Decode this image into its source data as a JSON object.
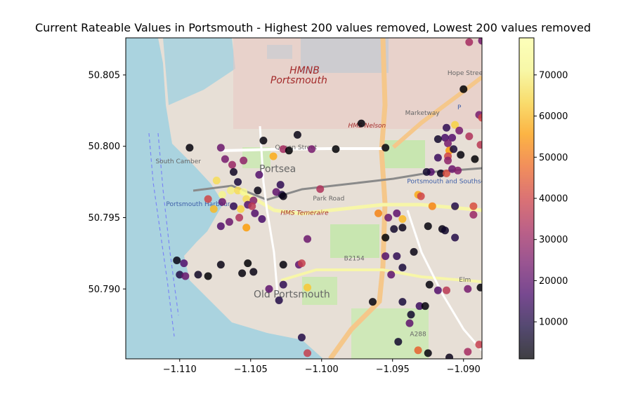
{
  "chart_data": {
    "type": "scatter",
    "title": "Current Rateable Values in Portsmouth - Highest 200 values removed, Lowest  200 values removed",
    "xlabel": "",
    "ylabel": "",
    "xlim": [
      -1.1138,
      -1.0887
    ],
    "ylim": [
      50.7851,
      50.8076
    ],
    "xticks": [
      -1.11,
      -1.105,
      -1.1,
      -1.095,
      -1.09
    ],
    "xtick_labels": [
      "−1.110",
      "−1.105",
      "−1.100",
      "−1.095",
      "−1.090"
    ],
    "yticks": [
      50.79,
      50.795,
      50.8,
      50.805
    ],
    "ytick_labels": [
      "50.790",
      "50.795",
      "50.800",
      "50.805"
    ],
    "grid": false,
    "colormap": "inferno",
    "colorbar": {
      "min": 1000,
      "max": 79000,
      "ticks": [
        10000,
        20000,
        30000,
        40000,
        50000,
        60000,
        70000
      ],
      "tick_labels": [
        "10000",
        "20000",
        "30000",
        "40000",
        "50000",
        "60000",
        "70000"
      ]
    },
    "basemap_labels": [
      {
        "text": "HMNB",
        "lon": -1.1012,
        "lat": 50.8051
      },
      {
        "text": "Portsmouth",
        "lon": -1.1016,
        "lat": 50.8044
      },
      {
        "text": "HMS Nelson",
        "lon": -1.0968,
        "lat": 50.8013
      },
      {
        "text": "Portsea",
        "lon": -1.1031,
        "lat": 50.7982
      },
      {
        "text": "Queen Street",
        "lon": -1.1018,
        "lat": 50.7998
      },
      {
        "text": "Park Road",
        "lon": -1.0995,
        "lat": 50.7962
      },
      {
        "text": "HMS Temeraire",
        "lon": -1.1012,
        "lat": 50.7952
      },
      {
        "text": "B2154",
        "lon": -1.0977,
        "lat": 50.792
      },
      {
        "text": "Old Portsmouth",
        "lon": -1.1021,
        "lat": 50.7894
      },
      {
        "text": "A288",
        "lon": -1.0932,
        "lat": 50.7867
      },
      {
        "text": "Portsmouth Harbour",
        "lon": -1.1087,
        "lat": 50.7958
      },
      {
        "text": "Portsmouth and Southsea",
        "lon": -1.0911,
        "lat": 50.7974
      },
      {
        "text": "Hope Street",
        "lon": -1.0898,
        "lat": 50.805
      },
      {
        "text": "Marketway",
        "lon": -1.0929,
        "lat": 50.8022
      },
      {
        "text": "South Camber",
        "lon": -1.1101,
        "lat": 50.7988
      },
      {
        "text": "Elm",
        "lon": -1.0899,
        "lat": 50.7905
      },
      {
        "text": "P",
        "lon": -1.0903,
        "lat": 50.8026
      }
    ],
    "points": [
      {
        "x": -1.1093,
        "y": 50.7999,
        "v": 2000
      },
      {
        "x": -1.1071,
        "y": 50.7999,
        "v": 22000
      },
      {
        "x": -1.1068,
        "y": 50.7991,
        "v": 24000
      },
      {
        "x": -1.1055,
        "y": 50.799,
        "v": 28000
      },
      {
        "x": -1.1063,
        "y": 50.7987,
        "v": 30000
      },
      {
        "x": -1.1062,
        "y": 50.7982,
        "v": 5000
      },
      {
        "x": -1.1044,
        "y": 50.798,
        "v": 18000
      },
      {
        "x": -1.1059,
        "y": 50.7975,
        "v": 8000
      },
      {
        "x": -1.1074,
        "y": 50.7976,
        "v": 66000
      },
      {
        "x": -1.107,
        "y": 50.7966,
        "v": 72000
      },
      {
        "x": -1.1064,
        "y": 50.7969,
        "v": 70000
      },
      {
        "x": -1.1059,
        "y": 50.7969,
        "v": 66000
      },
      {
        "x": -1.1055,
        "y": 50.7968,
        "v": 74000
      },
      {
        "x": -1.1045,
        "y": 50.7969,
        "v": 3000
      },
      {
        "x": -1.108,
        "y": 50.7963,
        "v": 40000
      },
      {
        "x": -1.107,
        "y": 50.7961,
        "v": 22000
      },
      {
        "x": -1.1053,
        "y": 50.7963,
        "v": 66000
      },
      {
        "x": -1.1052,
        "y": 50.7959,
        "v": 18000
      },
      {
        "x": -1.1048,
        "y": 50.7962,
        "v": 26000
      },
      {
        "x": -1.1049,
        "y": 50.7958,
        "v": 36000
      },
      {
        "x": -1.1062,
        "y": 50.7958,
        "v": 12000
      },
      {
        "x": -1.1076,
        "y": 50.7956,
        "v": 60000
      },
      {
        "x": -1.1057,
        "y": 50.7956,
        "v": 64000
      },
      {
        "x": -1.1047,
        "y": 50.7953,
        "v": 18000
      },
      {
        "x": -1.1058,
        "y": 50.795,
        "v": 34000
      },
      {
        "x": -1.1065,
        "y": 50.7947,
        "v": 22000
      },
      {
        "x": -1.1053,
        "y": 50.7943,
        "v": 56000
      },
      {
        "x": -1.1071,
        "y": 50.7944,
        "v": 18000
      },
      {
        "x": -1.1042,
        "y": 50.7949,
        "v": 16000
      },
      {
        "x": -1.1041,
        "y": 50.8004,
        "v": 2000
      },
      {
        "x": -1.1034,
        "y": 50.7993,
        "v": 58000
      },
      {
        "x": -1.1027,
        "y": 50.7998,
        "v": 32000
      },
      {
        "x": -1.1023,
        "y": 50.7997,
        "v": 1000
      },
      {
        "x": -1.1017,
        "y": 50.8008,
        "v": 3000
      },
      {
        "x": -1.1007,
        "y": 50.7998,
        "v": 24000
      },
      {
        "x": -1.099,
        "y": 50.7998,
        "v": 1000
      },
      {
        "x": -1.1029,
        "y": 50.7973,
        "v": 12000
      },
      {
        "x": -1.1028,
        "y": 50.7966,
        "v": 8000
      },
      {
        "x": -1.1027,
        "y": 50.7965,
        "v": 3000
      },
      {
        "x": -1.1032,
        "y": 50.7968,
        "v": 20000
      },
      {
        "x": -1.1001,
        "y": 50.797,
        "v": 34000
      },
      {
        "x": -1.0972,
        "y": 50.8016,
        "v": 2000
      },
      {
        "x": -1.0955,
        "y": 50.7999,
        "v": 2000
      },
      {
        "x": -1.096,
        "y": 50.7953,
        "v": 52000
      },
      {
        "x": -1.0953,
        "y": 50.795,
        "v": 22000
      },
      {
        "x": -1.0949,
        "y": 50.7942,
        "v": 6000
      },
      {
        "x": -1.0955,
        "y": 50.7936,
        "v": 1000
      },
      {
        "x": -1.0943,
        "y": 50.7943,
        "v": 4000
      },
      {
        "x": -1.0947,
        "y": 50.7953,
        "v": 20000
      },
      {
        "x": -1.0943,
        "y": 50.7949,
        "v": 60000
      },
      {
        "x": -1.101,
        "y": 50.7935,
        "v": 22000
      },
      {
        "x": -1.0955,
        "y": 50.7923,
        "v": 18000
      },
      {
        "x": -1.0947,
        "y": 50.7923,
        "v": 12000
      },
      {
        "x": -1.0943,
        "y": 50.7915,
        "v": 8000
      },
      {
        "x": -1.0951,
        "y": 50.791,
        "v": 20000
      },
      {
        "x": -1.0935,
        "y": 50.7926,
        "v": 3000
      },
      {
        "x": -1.0925,
        "y": 50.7944,
        "v": 2000
      },
      {
        "x": -1.0915,
        "y": 50.7942,
        "v": 3000
      },
      {
        "x": -1.0913,
        "y": 50.7941,
        "v": 6000
      },
      {
        "x": -1.0906,
        "y": 50.7936,
        "v": 10000
      },
      {
        "x": -1.0924,
        "y": 50.7903,
        "v": 2000
      },
      {
        "x": -1.0918,
        "y": 50.7899,
        "v": 18000
      },
      {
        "x": -1.0912,
        "y": 50.7899,
        "v": 36000
      },
      {
        "x": -1.0897,
        "y": 50.79,
        "v": 24000
      },
      {
        "x": -1.0888,
        "y": 50.7901,
        "v": 2000
      },
      {
        "x": -1.0931,
        "y": 50.7888,
        "v": 14000
      },
      {
        "x": -1.0927,
        "y": 50.7888,
        "v": 2000
      },
      {
        "x": -1.0943,
        "y": 50.7891,
        "v": 8000
      },
      {
        "x": -1.0964,
        "y": 50.7891,
        "v": 2000
      },
      {
        "x": -1.0937,
        "y": 50.7882,
        "v": 6000
      },
      {
        "x": -1.0938,
        "y": 50.7876,
        "v": 20000
      },
      {
        "x": -1.0946,
        "y": 50.7863,
        "v": 6000
      },
      {
        "x": -1.0932,
        "y": 50.7857,
        "v": 46000
      },
      {
        "x": -1.0925,
        "y": 50.7855,
        "v": 2000
      },
      {
        "x": -1.091,
        "y": 50.7852,
        "v": 4000
      },
      {
        "x": -1.0897,
        "y": 50.7856,
        "v": 32000
      },
      {
        "x": -1.0889,
        "y": 50.7861,
        "v": 38000
      },
      {
        "x": -1.1102,
        "y": 50.792,
        "v": 3000
      },
      {
        "x": -1.1097,
        "y": 50.7918,
        "v": 18000
      },
      {
        "x": -1.11,
        "y": 50.791,
        "v": 10000
      },
      {
        "x": -1.1096,
        "y": 50.7909,
        "v": 22000
      },
      {
        "x": -1.1087,
        "y": 50.791,
        "v": 5000
      },
      {
        "x": -1.108,
        "y": 50.7909,
        "v": 1000
      },
      {
        "x": -1.1071,
        "y": 50.7917,
        "v": 3000
      },
      {
        "x": -1.1056,
        "y": 50.7911,
        "v": 2000
      },
      {
        "x": -1.1052,
        "y": 50.7918,
        "v": 1000
      },
      {
        "x": -1.1048,
        "y": 50.7912,
        "v": 3000
      },
      {
        "x": -1.1037,
        "y": 50.79,
        "v": 20000
      },
      {
        "x": -1.1027,
        "y": 50.7903,
        "v": 12000
      },
      {
        "x": -1.1027,
        "y": 50.7917,
        "v": 2000
      },
      {
        "x": -1.1016,
        "y": 50.7917,
        "v": 20000
      },
      {
        "x": -1.1014,
        "y": 50.7918,
        "v": 38000
      },
      {
        "x": -1.101,
        "y": 50.7901,
        "v": 62000
      },
      {
        "x": -1.103,
        "y": 50.7892,
        "v": 10000
      },
      {
        "x": -1.1014,
        "y": 50.7866,
        "v": 10000
      },
      {
        "x": -1.101,
        "y": 50.7855,
        "v": 38000
      },
      {
        "x": -1.0896,
        "y": 50.8073,
        "v": 32000
      },
      {
        "x": -1.0887,
        "y": 50.8074,
        "v": 24000
      },
      {
        "x": -1.09,
        "y": 50.804,
        "v": 1000
      },
      {
        "x": -1.0889,
        "y": 50.8022,
        "v": 24000
      },
      {
        "x": -1.0887,
        "y": 50.802,
        "v": 40000
      },
      {
        "x": -1.0906,
        "y": 50.8015,
        "v": 64000
      },
      {
        "x": -1.0903,
        "y": 50.8011,
        "v": 24000
      },
      {
        "x": -1.0912,
        "y": 50.8013,
        "v": 12000
      },
      {
        "x": -1.0896,
        "y": 50.8007,
        "v": 34000
      },
      {
        "x": -1.0908,
        "y": 50.8006,
        "v": 18000
      },
      {
        "x": -1.0913,
        "y": 50.8006,
        "v": 16000
      },
      {
        "x": -1.0918,
        "y": 50.8005,
        "v": 6000
      },
      {
        "x": -1.0911,
        "y": 50.8002,
        "v": 24000
      },
      {
        "x": -1.0888,
        "y": 50.8001,
        "v": 36000
      },
      {
        "x": -1.091,
        "y": 50.7997,
        "v": 56000
      },
      {
        "x": -1.0907,
        "y": 50.7998,
        "v": 8000
      },
      {
        "x": -1.0911,
        "y": 50.7993,
        "v": 40000
      },
      {
        "x": -1.0911,
        "y": 50.799,
        "v": 28000
      },
      {
        "x": -1.0902,
        "y": 50.7994,
        "v": 2000
      },
      {
        "x": -1.0892,
        "y": 50.7991,
        "v": 1000
      },
      {
        "x": -1.0918,
        "y": 50.7992,
        "v": 14000
      },
      {
        "x": -1.0923,
        "y": 50.7982,
        "v": 18000
      },
      {
        "x": -1.0916,
        "y": 50.7981,
        "v": 4000
      },
      {
        "x": -1.0912,
        "y": 50.7981,
        "v": 42000
      },
      {
        "x": -1.0908,
        "y": 50.7984,
        "v": 22000
      },
      {
        "x": -1.0904,
        "y": 50.7983,
        "v": 26000
      },
      {
        "x": -1.0926,
        "y": 50.7982,
        "v": 6000
      },
      {
        "x": -1.0932,
        "y": 50.7966,
        "v": 58000
      },
      {
        "x": -1.093,
        "y": 50.7965,
        "v": 40000
      },
      {
        "x": -1.0922,
        "y": 50.7958,
        "v": 52000
      },
      {
        "x": -1.0906,
        "y": 50.7958,
        "v": 10000
      },
      {
        "x": -1.0893,
        "y": 50.7958,
        "v": 42000
      },
      {
        "x": -1.0893,
        "y": 50.7952,
        "v": 30000
      }
    ]
  }
}
